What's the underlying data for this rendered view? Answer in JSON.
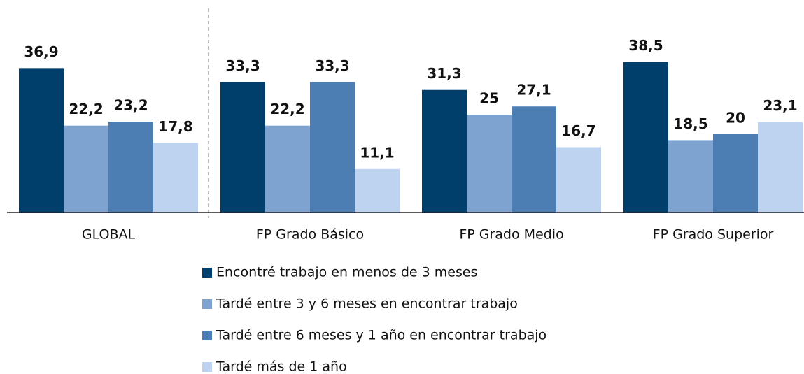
{
  "chart_data": {
    "type": "bar",
    "categories": [
      "GLOBAL",
      "FP Grado Básico",
      "FP Grado Medio",
      "FP Grado Superior"
    ],
    "series": [
      {
        "name": "Encontré trabajo en menos de 3 meses",
        "color": "#003f6b",
        "values": [
          36.9,
          33.3,
          31.3,
          38.5
        ],
        "value_labels": [
          "36,9",
          "33,3",
          "31,3",
          "38,5"
        ]
      },
      {
        "name": "Tardé entre 3 y 6 meses en encontrar trabajo",
        "color": "#7fa3d0",
        "values": [
          22.2,
          22.2,
          25,
          18.5
        ],
        "value_labels": [
          "22,2",
          "22,2",
          "25",
          "18,5"
        ]
      },
      {
        "name": "Tardé entre 6 meses y 1 año en encontrar trabajo",
        "color": "#4d7eb3",
        "values": [
          23.2,
          33.3,
          27.1,
          20
        ],
        "value_labels": [
          "23,2",
          "33,3",
          "27,1",
          "20"
        ]
      },
      {
        "name": "Tardé más de 1 año",
        "color": "#bdd3ef",
        "values": [
          17.8,
          11.1,
          16.7,
          23.1
        ],
        "value_labels": [
          "17,8",
          "11,1",
          "16,7",
          "23,1"
        ]
      }
    ],
    "ylim": [
      0,
      40
    ]
  }
}
